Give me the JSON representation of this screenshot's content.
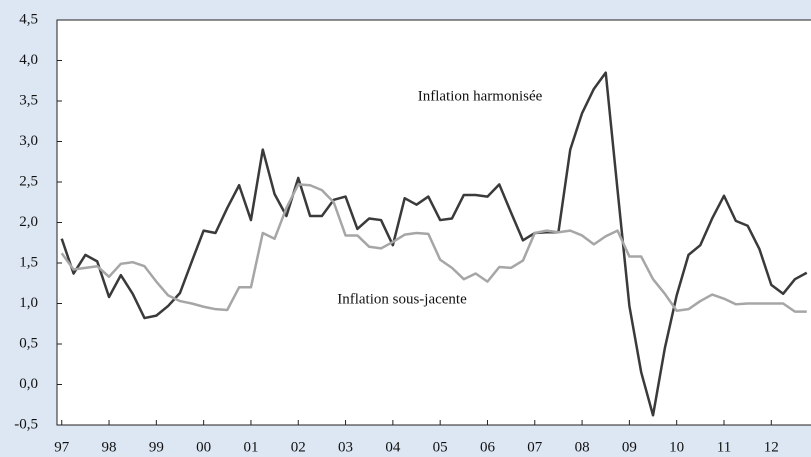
{
  "chart_data": {
    "type": "line",
    "x": [
      1997,
      1997.25,
      1997.5,
      1997.75,
      1998,
      1998.25,
      1998.5,
      1998.75,
      1999,
      1999.25,
      1999.5,
      1999.75,
      2000,
      2000.25,
      2000.5,
      2000.75,
      2001,
      2001.25,
      2001.5,
      2001.75,
      2002,
      2002.25,
      2002.5,
      2002.75,
      2003,
      2003.25,
      2003.5,
      2003.75,
      2004,
      2004.25,
      2004.5,
      2004.75,
      2005,
      2005.25,
      2005.5,
      2005.75,
      2006,
      2006.25,
      2006.5,
      2006.75,
      2007,
      2007.25,
      2007.5,
      2007.75,
      2008,
      2008.25,
      2008.5,
      2008.75,
      2009,
      2009.25,
      2009.5,
      2009.75,
      2010,
      2010.25,
      2010.5,
      2010.75,
      2011,
      2011.25,
      2011.5,
      2011.75,
      2012,
      2012.25,
      2012.5,
      2012.75
    ],
    "series": [
      {
        "name": "Inflation harmonisée",
        "color": "#3a3a3a",
        "values": [
          1.8,
          1.37,
          1.6,
          1.52,
          1.08,
          1.35,
          1.12,
          0.82,
          0.85,
          0.97,
          1.13,
          1.52,
          1.9,
          1.87,
          2.18,
          2.46,
          2.03,
          2.9,
          2.35,
          2.08,
          2.55,
          2.08,
          2.08,
          2.28,
          2.32,
          1.92,
          2.05,
          2.03,
          1.72,
          2.3,
          2.22,
          2.32,
          2.03,
          2.05,
          2.34,
          2.34,
          2.32,
          2.47,
          2.12,
          1.78,
          1.87,
          1.88,
          1.88,
          2.9,
          3.35,
          3.65,
          3.85,
          2.4,
          0.97,
          0.15,
          -0.38,
          0.45,
          1.1,
          1.6,
          1.72,
          2.05,
          2.33,
          2.02,
          1.96,
          1.67,
          1.23,
          1.12,
          1.3,
          1.38
        ]
      },
      {
        "name": "Inflation sous-jacente",
        "color": "#a6a6a6",
        "values": [
          1.62,
          1.42,
          1.44,
          1.46,
          1.33,
          1.49,
          1.51,
          1.46,
          1.27,
          1.1,
          1.03,
          1.0,
          0.96,
          0.93,
          0.92,
          1.2,
          1.2,
          1.87,
          1.8,
          2.18,
          2.47,
          2.46,
          2.4,
          2.25,
          1.84,
          1.84,
          1.7,
          1.68,
          1.76,
          1.85,
          1.87,
          1.86,
          1.54,
          1.44,
          1.3,
          1.37,
          1.27,
          1.45,
          1.44,
          1.53,
          1.87,
          1.9,
          1.88,
          1.9,
          1.84,
          1.73,
          1.83,
          1.9,
          1.58,
          1.58,
          1.3,
          1.12,
          0.91,
          0.93,
          1.03,
          1.11,
          1.06,
          0.99,
          1.0,
          1.0,
          1.0,
          1.0,
          0.9,
          0.9
        ]
      }
    ],
    "xlim": [
      1996.9,
      2012.85
    ],
    "xticks": [
      {
        "value": 1997,
        "label": "97"
      },
      {
        "value": 1998,
        "label": "98"
      },
      {
        "value": 1999,
        "label": "99"
      },
      {
        "value": 2000,
        "label": "00"
      },
      {
        "value": 2001,
        "label": "01"
      },
      {
        "value": 2002,
        "label": "02"
      },
      {
        "value": 2003,
        "label": "03"
      },
      {
        "value": 2004,
        "label": "04"
      },
      {
        "value": 2005,
        "label": "05"
      },
      {
        "value": 2006,
        "label": "06"
      },
      {
        "value": 2007,
        "label": "07"
      },
      {
        "value": 2008,
        "label": "08"
      },
      {
        "value": 2009,
        "label": "09"
      },
      {
        "value": 2010,
        "label": "10"
      },
      {
        "value": 2011,
        "label": "11"
      },
      {
        "value": 2012,
        "label": "12"
      }
    ],
    "ylim": [
      -0.5,
      4.5
    ],
    "yticks": [
      {
        "value": -0.5,
        "label": "-0,5"
      },
      {
        "value": 0,
        "label": "0,0"
      },
      {
        "value": 0.5,
        "label": "0,5"
      },
      {
        "value": 1,
        "label": "1,0"
      },
      {
        "value": 1.5,
        "label": "1,5"
      },
      {
        "value": 2,
        "label": "2,0"
      },
      {
        "value": 2.5,
        "label": "2,5"
      },
      {
        "value": 3,
        "label": "3,0"
      },
      {
        "value": 3.5,
        "label": "3,5"
      },
      {
        "value": 4,
        "label": "4,0"
      },
      {
        "value": 4.5,
        "label": "4,5"
      }
    ],
    "grid": false
  }
}
